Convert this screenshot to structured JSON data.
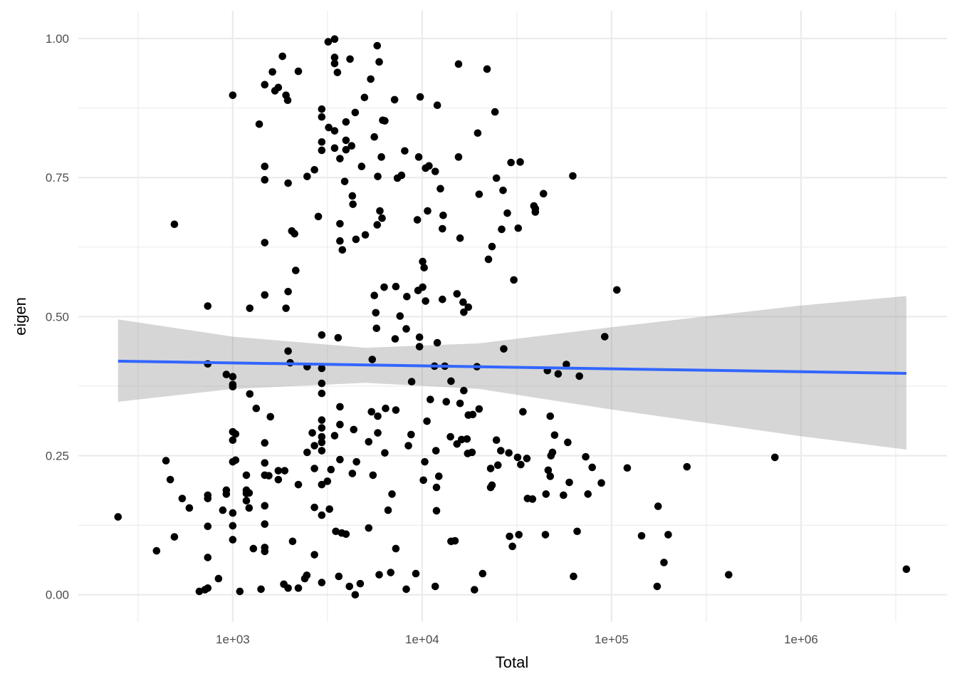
{
  "chart_data": {
    "type": "scatter",
    "title": "",
    "xlabel": "Total",
    "ylabel": "eigen",
    "x_scale": "log10",
    "xlim": [
      153,
      5900000
    ],
    "ylim": [
      -0.049,
      1.05
    ],
    "x_ticks": [
      {
        "value": 1000,
        "label": "1e+03"
      },
      {
        "value": 10000,
        "label": "1e+04"
      },
      {
        "value": 100000,
        "label": "1e+05"
      },
      {
        "value": 1000000,
        "label": "1e+06"
      }
    ],
    "y_ticks": [
      {
        "value": 0,
        "label": "0.00"
      },
      {
        "value": 0.25,
        "label": "0.25"
      },
      {
        "value": 0.5,
        "label": "0.50"
      },
      {
        "value": 0.75,
        "label": "0.75"
      },
      {
        "value": 1,
        "label": "1.00"
      }
    ],
    "grid": true,
    "point_color": "#000000",
    "fit_color": "#3366FF",
    "band_color": "#999999",
    "fit_line": [
      {
        "x": 248,
        "y": 0.42
      },
      {
        "x": 3600000,
        "y": 0.398
      }
    ],
    "ci_band": [
      {
        "x": 248,
        "lower": 0.347,
        "upper": 0.495
      },
      {
        "x": 1000,
        "lower": 0.37,
        "upper": 0.464
      },
      {
        "x": 5000,
        "lower": 0.381,
        "upper": 0.444
      },
      {
        "x": 20000,
        "lower": 0.37,
        "upper": 0.452
      },
      {
        "x": 100000,
        "lower": 0.333,
        "upper": 0.481
      },
      {
        "x": 1000000,
        "lower": 0.285,
        "upper": 0.52
      },
      {
        "x": 3600000,
        "lower": 0.261,
        "upper": 0.537
      }
    ],
    "points": [
      [
        248,
        0.14
      ],
      [
        396,
        0.079
      ],
      [
        444,
        0.241
      ],
      [
        468,
        0.207
      ],
      [
        492,
        0.666
      ],
      [
        492,
        0.104
      ],
      [
        541,
        0.173
      ],
      [
        590,
        0.156
      ],
      [
        666,
        0.006
      ],
      [
        713,
        0.009
      ],
      [
        738,
        0.012
      ],
      [
        738,
        0.179
      ],
      [
        738,
        0.173
      ],
      [
        738,
        0.123
      ],
      [
        738,
        0.067
      ],
      [
        738,
        0.519
      ],
      [
        738,
        0.415
      ],
      [
        841,
        0.029
      ],
      [
        886,
        0.152
      ],
      [
        925,
        0.396
      ],
      [
        925,
        0.188
      ],
      [
        925,
        0.181
      ],
      [
        1000,
        0.392
      ],
      [
        1000,
        0.378
      ],
      [
        1000,
        0.374
      ],
      [
        1000,
        0.293
      ],
      [
        1000,
        0.278
      ],
      [
        1000,
        0.239
      ],
      [
        1000,
        0.147
      ],
      [
        1000,
        0.124
      ],
      [
        1000,
        0.099
      ],
      [
        1000,
        0.898
      ],
      [
        1035,
        0.289
      ],
      [
        1035,
        0.242
      ],
      [
        1090,
        0.006
      ],
      [
        1180,
        0.215
      ],
      [
        1180,
        0.188
      ],
      [
        1180,
        0.182
      ],
      [
        1180,
        0.169
      ],
      [
        1220,
        0.183
      ],
      [
        1220,
        0.156
      ],
      [
        1230,
        0.361
      ],
      [
        1230,
        0.515
      ],
      [
        1285,
        0.083
      ],
      [
        1330,
        0.335
      ],
      [
        1380,
        0.846
      ],
      [
        1410,
        0.01
      ],
      [
        1475,
        0.917
      ],
      [
        1475,
        0.77
      ],
      [
        1475,
        0.746
      ],
      [
        1475,
        0.633
      ],
      [
        1475,
        0.539
      ],
      [
        1475,
        0.273
      ],
      [
        1475,
        0.237
      ],
      [
        1475,
        0.215
      ],
      [
        1475,
        0.16
      ],
      [
        1475,
        0.127
      ],
      [
        1475,
        0.085
      ],
      [
        1475,
        0.078
      ],
      [
        1550,
        0.214
      ],
      [
        1580,
        0.32
      ],
      [
        1620,
        0.94
      ],
      [
        1670,
        0.906
      ],
      [
        1740,
        0.912
      ],
      [
        1740,
        0.223
      ],
      [
        1740,
        0.207
      ],
      [
        1830,
        0.968
      ],
      [
        1860,
        0.019
      ],
      [
        1880,
        0.223
      ],
      [
        1910,
        0.898
      ],
      [
        1910,
        0.515
      ],
      [
        1950,
        0.889
      ],
      [
        1960,
        0.545
      ],
      [
        1960,
        0.74
      ],
      [
        1960,
        0.438
      ],
      [
        1960,
        0.012
      ],
      [
        2010,
        0.417
      ],
      [
        2050,
        0.654
      ],
      [
        2070,
        0.096
      ],
      [
        2120,
        0.649
      ],
      [
        2150,
        0.583
      ],
      [
        2220,
        0.941
      ],
      [
        2220,
        0.012
      ],
      [
        2220,
        0.198
      ],
      [
        2400,
        0.029
      ],
      [
        2460,
        0.035
      ],
      [
        2470,
        0.41
      ],
      [
        2470,
        0.256
      ],
      [
        2470,
        0.752
      ],
      [
        2630,
        0.291
      ],
      [
        2700,
        0.268
      ],
      [
        2700,
        0.227
      ],
      [
        2700,
        0.157
      ],
      [
        2700,
        0.072
      ],
      [
        2700,
        0.764
      ],
      [
        2830,
        0.68
      ],
      [
        2950,
        0.022
      ],
      [
        2950,
        0.143
      ],
      [
        2950,
        0.198
      ],
      [
        2950,
        0.259
      ],
      [
        2950,
        0.274
      ],
      [
        2950,
        0.284
      ],
      [
        2950,
        0.3
      ],
      [
        2950,
        0.314
      ],
      [
        2950,
        0.362
      ],
      [
        2950,
        0.38
      ],
      [
        2950,
        0.407
      ],
      [
        2950,
        0.467
      ],
      [
        2950,
        0.799
      ],
      [
        2950,
        0.814
      ],
      [
        2950,
        0.859
      ],
      [
        2950,
        0.873
      ],
      [
        3160,
        0.204
      ],
      [
        3190,
        0.994
      ],
      [
        3210,
        0.84
      ],
      [
        3240,
        0.154
      ],
      [
        3300,
        0.225
      ],
      [
        3450,
        0.999
      ],
      [
        3450,
        0.966
      ],
      [
        3450,
        0.955
      ],
      [
        3450,
        0.834
      ],
      [
        3450,
        0.803
      ],
      [
        3450,
        0.286
      ],
      [
        3500,
        0.114
      ],
      [
        3570,
        0.939
      ],
      [
        3600,
        0.462
      ],
      [
        3630,
        0.033
      ],
      [
        3680,
        0.243
      ],
      [
        3680,
        0.306
      ],
      [
        3680,
        0.338
      ],
      [
        3680,
        0.667
      ],
      [
        3680,
        0.636
      ],
      [
        3680,
        0.784
      ],
      [
        3760,
        0.111
      ],
      [
        3790,
        0.62
      ],
      [
        3900,
        0.743
      ],
      [
        3960,
        0.109
      ],
      [
        3960,
        0.85
      ],
      [
        3960,
        0.817
      ],
      [
        3960,
        0.8
      ],
      [
        4130,
        0.015
      ],
      [
        4160,
        0.963
      ],
      [
        4240,
        0.807
      ],
      [
        4280,
        0.218
      ],
      [
        4280,
        0.717
      ],
      [
        4310,
        0.702
      ],
      [
        4350,
        0.297
      ],
      [
        4430,
        0.867
      ],
      [
        4430,
        0.0
      ],
      [
        4470,
        0.639
      ],
      [
        4500,
        0.239
      ],
      [
        4710,
        0.02
      ],
      [
        4790,
        0.77
      ],
      [
        4960,
        0.894
      ],
      [
        5010,
        0.647
      ],
      [
        5220,
        0.12
      ],
      [
        5220,
        0.275
      ],
      [
        5350,
        0.927
      ],
      [
        5400,
        0.329
      ],
      [
        5450,
        0.423
      ],
      [
        5500,
        0.215
      ],
      [
        5590,
        0.823
      ],
      [
        5590,
        0.538
      ],
      [
        5690,
        0.507
      ],
      [
        5740,
        0.479
      ],
      [
        5790,
        0.987
      ],
      [
        5790,
        0.665
      ],
      [
        5830,
        0.752
      ],
      [
        5830,
        0.321
      ],
      [
        5830,
        0.291
      ],
      [
        5930,
        0.036
      ],
      [
        5930,
        0.958
      ],
      [
        5980,
        0.69
      ],
      [
        6090,
        0.787
      ],
      [
        6140,
        0.677
      ],
      [
        6190,
        0.853
      ],
      [
        6300,
        0.553
      ],
      [
        6350,
        0.852
      ],
      [
        6350,
        0.255
      ],
      [
        6410,
        0.335
      ],
      [
        6610,
        0.152
      ],
      [
        6820,
        0.04
      ],
      [
        6930,
        0.181
      ],
      [
        7150,
        0.89
      ],
      [
        7200,
        0.46
      ],
      [
        7260,
        0.554
      ],
      [
        7260,
        0.083
      ],
      [
        7260,
        0.332
      ],
      [
        7400,
        0.749
      ],
      [
        7640,
        0.501
      ],
      [
        7780,
        0.754
      ],
      [
        8090,
        0.798
      ],
      [
        8240,
        0.478
      ],
      [
        8240,
        0.01
      ],
      [
        8300,
        0.536
      ],
      [
        8460,
        0.268
      ],
      [
        8740,
        0.288
      ],
      [
        8800,
        0.383
      ],
      [
        9260,
        0.038
      ],
      [
        9430,
        0.674
      ],
      [
        9510,
        0.547
      ],
      [
        9590,
        0.787
      ],
      [
        9680,
        0.446
      ],
      [
        9680,
        0.463
      ],
      [
        9760,
        0.895
      ],
      [
        10060,
        0.599
      ],
      [
        10060,
        0.553
      ],
      [
        10150,
        0.206
      ],
      [
        10240,
        0.588
      ],
      [
        10320,
        0.239
      ],
      [
        10420,
        0.767
      ],
      [
        10420,
        0.528
      ],
      [
        10600,
        0.312
      ],
      [
        10680,
        0.69
      ],
      [
        10860,
        0.771
      ],
      [
        11040,
        0.351
      ],
      [
        11620,
        0.411
      ],
      [
        11720,
        0.761
      ],
      [
        11720,
        0.015
      ],
      [
        11820,
        0.259
      ],
      [
        11900,
        0.151
      ],
      [
        11900,
        0.193
      ],
      [
        12020,
        0.88
      ],
      [
        12020,
        0.453
      ],
      [
        12240,
        0.213
      ],
      [
        12480,
        0.73
      ],
      [
        12790,
        0.658
      ],
      [
        12910,
        0.682
      ],
      [
        12790,
        0.531
      ],
      [
        13170,
        0.411
      ],
      [
        13400,
        0.347
      ],
      [
        14100,
        0.284
      ],
      [
        14200,
        0.384
      ],
      [
        14200,
        0.096
      ],
      [
        14900,
        0.097
      ],
      [
        15270,
        0.541
      ],
      [
        15270,
        0.271
      ],
      [
        15560,
        0.954
      ],
      [
        15560,
        0.787
      ],
      [
        15850,
        0.641
      ],
      [
        15850,
        0.344
      ],
      [
        16140,
        0.279
      ],
      [
        16450,
        0.526
      ],
      [
        16590,
        0.508
      ],
      [
        16590,
        0.367
      ],
      [
        17240,
        0.28
      ],
      [
        17390,
        0.254
      ],
      [
        17530,
        0.517
      ],
      [
        17530,
        0.323
      ],
      [
        18330,
        0.256
      ],
      [
        18490,
        0.324
      ],
      [
        18880,
        0.009
      ],
      [
        19460,
        0.41
      ],
      [
        19640,
        0.83
      ],
      [
        19980,
        0.334
      ],
      [
        19980,
        0.72
      ],
      [
        20860,
        0.038
      ],
      [
        22010,
        0.945
      ],
      [
        22390,
        0.603
      ],
      [
        22990,
        0.227
      ],
      [
        22990,
        0.193
      ],
      [
        23370,
        0.626
      ],
      [
        23370,
        0.197
      ],
      [
        24230,
        0.868
      ],
      [
        24660,
        0.278
      ],
      [
        24660,
        0.749
      ],
      [
        25110,
        0.233
      ],
      [
        26000,
        0.259
      ],
      [
        26280,
        0.657
      ],
      [
        26730,
        0.727
      ],
      [
        26960,
        0.442
      ],
      [
        28160,
        0.686
      ],
      [
        28680,
        0.255
      ],
      [
        28930,
        0.105
      ],
      [
        29440,
        0.777
      ],
      [
        29950,
        0.087
      ],
      [
        30470,
        0.566
      ],
      [
        31910,
        0.247
      ],
      [
        32140,
        0.659
      ],
      [
        32390,
        0.108
      ],
      [
        32920,
        0.778
      ],
      [
        33160,
        0.234
      ],
      [
        34030,
        0.329
      ],
      [
        35700,
        0.245
      ],
      [
        35980,
        0.173
      ],
      [
        38230,
        0.172
      ],
      [
        38900,
        0.699
      ],
      [
        39580,
        0.694
      ],
      [
        39580,
        0.688
      ],
      [
        43690,
        0.721
      ],
      [
        44730,
        0.108
      ],
      [
        45040,
        0.181
      ],
      [
        45830,
        0.403
      ],
      [
        46270,
        0.224
      ],
      [
        47430,
        0.321
      ],
      [
        47430,
        0.213
      ],
      [
        47860,
        0.25
      ],
      [
        48740,
        0.256
      ],
      [
        50030,
        0.287
      ],
      [
        52230,
        0.397
      ],
      [
        55720,
        0.179
      ],
      [
        57680,
        0.414
      ],
      [
        58700,
        0.274
      ],
      [
        59800,
        0.202
      ],
      [
        62400,
        0.753
      ],
      [
        62950,
        0.033
      ],
      [
        65800,
        0.114
      ],
      [
        67600,
        0.393
      ],
      [
        73000,
        0.248
      ],
      [
        75000,
        0.181
      ],
      [
        79000,
        0.229
      ],
      [
        88300,
        0.201
      ],
      [
        92000,
        0.464
      ],
      [
        106600,
        0.548
      ],
      [
        121000,
        0.228
      ],
      [
        144000,
        0.106
      ],
      [
        174000,
        0.015
      ],
      [
        176000,
        0.159
      ],
      [
        189000,
        0.058
      ],
      [
        199000,
        0.108
      ],
      [
        250000,
        0.23
      ],
      [
        415000,
        0.036
      ],
      [
        728000,
        0.247
      ],
      [
        3600000,
        0.046
      ]
    ]
  }
}
